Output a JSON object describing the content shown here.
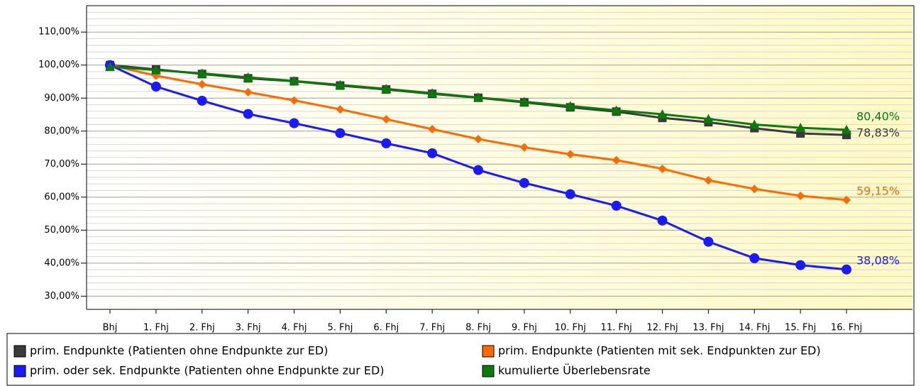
{
  "chart_data": {
    "type": "line",
    "categories": [
      "Bhj",
      "1. Fhj",
      "2. Fhj",
      "3. Fhj",
      "4. Fhj",
      "5. Fhj",
      "6. Fhj",
      "7. Fhj",
      "8. Fhj",
      "9. Fhj",
      "10. Fhj",
      "11. Fhj",
      "12. Fhj",
      "13. Fhj",
      "14. Fhj",
      "15. Fhj",
      "16. Fhj"
    ],
    "series": [
      {
        "name": "prim. Endpunkte (Patienten ohne Endpunkte zur ED)",
        "color": "#3a3a3a",
        "marker": "square",
        "values": [
          100,
          98.7,
          97.3,
          96.0,
          95.1,
          93.8,
          92.6,
          91.3,
          90.1,
          88.7,
          87.2,
          85.9,
          84.0,
          82.7,
          80.9,
          79.3,
          78.83
        ],
        "value_labels": [
          null,
          null,
          null,
          null,
          null,
          null,
          null,
          null,
          null,
          null,
          null,
          null,
          null,
          null,
          null,
          null,
          "78,83%"
        ]
      },
      {
        "name": "prim. Endpunkte (Patienten mit sek. Endpunkten zur ED)",
        "color": "#ff6a00",
        "marker": "diamond",
        "values": [
          100,
          96.8,
          94.2,
          91.8,
          89.3,
          86.6,
          83.6,
          80.6,
          77.6,
          75.1,
          73.0,
          71.2,
          68.6,
          65.1,
          62.5,
          60.4,
          59.15
        ],
        "value_labels": [
          null,
          null,
          null,
          null,
          null,
          null,
          null,
          null,
          null,
          null,
          null,
          null,
          null,
          null,
          null,
          null,
          "59,15%"
        ]
      },
      {
        "name": "prim. oder sek. Endpunkte (Patienten ohne Endpunkte zur ED)",
        "color": "#1a1aff",
        "marker": "circle",
        "values": [
          100,
          93.5,
          89.2,
          85.2,
          82.4,
          79.4,
          76.3,
          73.3,
          68.2,
          64.3,
          60.9,
          57.4,
          52.9,
          46.5,
          41.5,
          39.4,
          38.08
        ],
        "value_labels": [
          null,
          null,
          null,
          null,
          null,
          null,
          null,
          null,
          null,
          null,
          null,
          null,
          null,
          null,
          null,
          null,
          "38,08%"
        ]
      },
      {
        "name": "kumulierte Überlebensrate",
        "color": "#0a7a0a",
        "marker": "triangle",
        "values": [
          99.5,
          98.5,
          97.5,
          96.3,
          95.2,
          94.0,
          92.8,
          91.5,
          90.2,
          88.9,
          87.6,
          86.3,
          85.1,
          83.7,
          82.0,
          81.0,
          80.4
        ],
        "value_labels": [
          null,
          null,
          null,
          null,
          null,
          null,
          null,
          null,
          null,
          null,
          null,
          null,
          null,
          null,
          null,
          null,
          "80,40%"
        ]
      }
    ],
    "ylim": [
      26,
      118
    ],
    "yticks": [
      {
        "value": 30,
        "label": "30,00%"
      },
      {
        "value": 40,
        "label": "40,00%"
      },
      {
        "value": 50,
        "label": "50,00%"
      },
      {
        "value": 60,
        "label": "60,00%"
      },
      {
        "value": 70,
        "label": "70,00%"
      },
      {
        "value": 80,
        "label": "80,00%"
      },
      {
        "value": 90,
        "label": "90,00%"
      },
      {
        "value": 100,
        "label": "100,00%"
      },
      {
        "value": 110,
        "label": "110,00%"
      }
    ],
    "grid": true,
    "legend": "bottom"
  }
}
